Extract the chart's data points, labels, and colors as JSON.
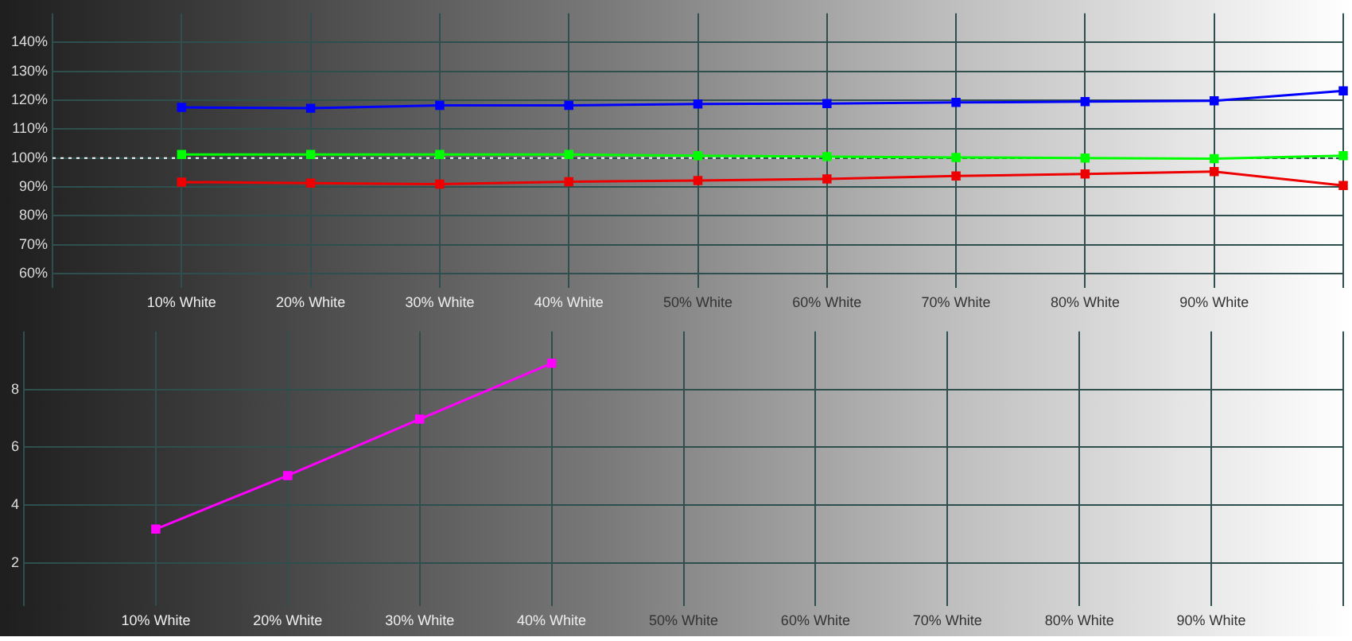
{
  "chart_data": [
    {
      "type": "line",
      "categories": [
        null,
        "10% White",
        "20% White",
        "30% White",
        "40% White",
        "50% White",
        "60% White",
        "70% White",
        "80% White",
        "90% White",
        null
      ],
      "series": [
        {
          "color": "#0000ff",
          "values": [
            null,
            117.5,
            117.2,
            118.2,
            118.2,
            118.7,
            118.8,
            119.2,
            119.5,
            119.8,
            123.2
          ]
        },
        {
          "color": "#00ff00",
          "values": [
            null,
            101.2,
            101.2,
            101.2,
            101.2,
            100.8,
            100.5,
            100.2,
            100.0,
            99.8,
            100.8
          ]
        },
        {
          "color": "#ee0000",
          "values": [
            null,
            91.7,
            91.3,
            91.0,
            91.8,
            92.2,
            92.8,
            93.8,
            94.5,
            95.3,
            90.5
          ]
        }
      ],
      "ylim": [
        55,
        150
      ],
      "yticks": [
        {
          "value": 60,
          "label": "60%"
        },
        {
          "value": 70,
          "label": "70%"
        },
        {
          "value": 80,
          "label": "80%"
        },
        {
          "value": 90,
          "label": "90%"
        },
        {
          "value": 100,
          "label": "100%"
        },
        {
          "value": 110,
          "label": "110%"
        },
        {
          "value": 120,
          "label": "120%"
        },
        {
          "value": 130,
          "label": "130%"
        },
        {
          "value": 140,
          "label": "140%"
        }
      ],
      "ref_lines": [
        {
          "axis": "y",
          "value": 100,
          "color": "#ffffff",
          "line_style": "dotted"
        }
      ],
      "grid": true,
      "marker": "square",
      "line_style": "solid"
    },
    {
      "type": "line",
      "categories": [
        null,
        "10% White",
        "20% White",
        "30% White",
        "40% White",
        "50% White",
        "60% White",
        "70% White",
        "80% White",
        "90% White",
        null
      ],
      "series": [
        {
          "color": "#ff00ff",
          "values": [
            null,
            3.17,
            5.02,
            6.97,
            8.9,
            null,
            null,
            null,
            null,
            null,
            null
          ]
        }
      ],
      "ylim": [
        0.5,
        10
      ],
      "yticks": [
        2,
        4,
        6,
        8
      ],
      "grid": true,
      "marker": "square",
      "line_style": "solid"
    }
  ]
}
